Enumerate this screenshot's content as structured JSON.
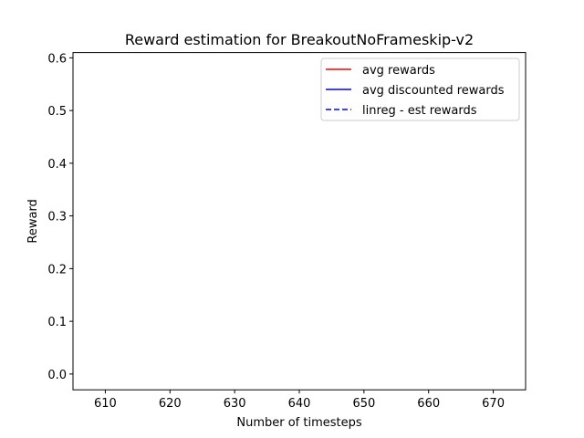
{
  "chart_data": {
    "type": "line",
    "title": "Reward estimation for BreakoutNoFrameskip-v2",
    "xlabel": "Number of timesteps",
    "ylabel": "Reward",
    "xlim": [
      605,
      675
    ],
    "ylim": [
      -0.03,
      0.61
    ],
    "xticks": [
      610,
      620,
      630,
      640,
      650,
      660,
      670
    ],
    "yticks": [
      0.0,
      0.1,
      0.2,
      0.3,
      0.4,
      0.5,
      0.6
    ],
    "ytick_labels": [
      "0.0",
      "0.1",
      "0.2",
      "0.3",
      "0.4",
      "0.5",
      "0.6"
    ],
    "grid": false,
    "legend_position": "top-right",
    "series": [
      {
        "name": "avg rewards",
        "color": "#ff0000",
        "linestyle": "solid",
        "x": [],
        "y": []
      },
      {
        "name": "avg discounted rewards",
        "color": "#0000ff",
        "linestyle": "solid",
        "x": [],
        "y": []
      },
      {
        "name": "linreg - est rewards",
        "color": "#0000ff",
        "linestyle": "dashed",
        "x": [],
        "y": []
      }
    ]
  }
}
